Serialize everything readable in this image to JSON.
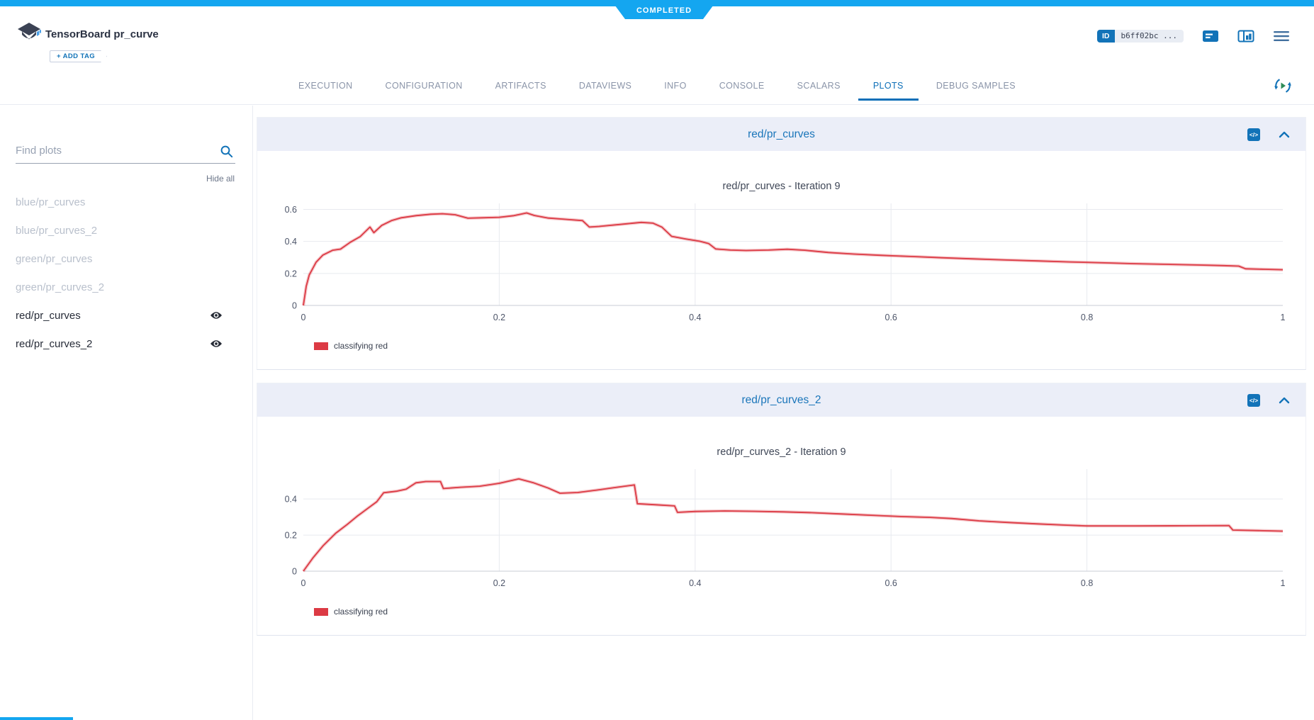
{
  "status": {
    "label": "COMPLETED"
  },
  "colors": {
    "accent_blue": "#14a6f0",
    "link_blue": "#1273b8",
    "red_series": "#dc3a44",
    "panel_header_bg": "#ebeef8"
  },
  "header": {
    "title": "TensorBoard pr_curve",
    "add_tag_label": "+ ADD TAG",
    "id_label": "ID",
    "id_value": "b6ff02bc ..."
  },
  "tabs": {
    "items": [
      "EXECUTION",
      "CONFIGURATION",
      "ARTIFACTS",
      "DATAVIEWS",
      "INFO",
      "CONSOLE",
      "SCALARS",
      "PLOTS",
      "DEBUG SAMPLES"
    ],
    "active": "PLOTS"
  },
  "sidebar": {
    "search_placeholder": "Find plots",
    "hide_all_label": "Hide all",
    "items": [
      {
        "label": "blue/pr_curves",
        "visible": false
      },
      {
        "label": "blue/pr_curves_2",
        "visible": false
      },
      {
        "label": "green/pr_curves",
        "visible": false
      },
      {
        "label": "green/pr_curves_2",
        "visible": false
      },
      {
        "label": "red/pr_curves",
        "visible": true
      },
      {
        "label": "red/pr_curves_2",
        "visible": true
      }
    ]
  },
  "panels": [
    {
      "title": "red/pr_curves"
    },
    {
      "title": "red/pr_curves_2"
    }
  ],
  "chart_data": [
    {
      "type": "line",
      "title": "red/pr_curves - Iteration 9",
      "xlabel": "",
      "ylabel": "",
      "xlim": [
        0,
        1
      ],
      "ylim": [
        0,
        0.62
      ],
      "xticks": [
        0,
        0.2,
        0.4,
        0.6,
        0.8,
        1
      ],
      "xtick_labels": [
        "0",
        "0.2",
        "0.4",
        "0.6",
        "0.8",
        "1"
      ],
      "yticks": [
        0,
        0.2,
        0.4,
        0.6
      ],
      "ytick_labels": [
        "0",
        "0.2",
        "0.4",
        "0.6"
      ],
      "grid": true,
      "legend_position": "bottom-left",
      "series": [
        {
          "name": "classifying red",
          "color": "#dc3a44",
          "points": [
            [
              0,
              0
            ],
            [
              0.003,
              0.12
            ],
            [
              0.006,
              0.19
            ],
            [
              0.013,
              0.27
            ],
            [
              0.02,
              0.315
            ],
            [
              0.03,
              0.345
            ],
            [
              0.038,
              0.352
            ],
            [
              0.048,
              0.395
            ],
            [
              0.058,
              0.43
            ],
            [
              0.068,
              0.49
            ],
            [
              0.072,
              0.455
            ],
            [
              0.08,
              0.5
            ],
            [
              0.09,
              0.53
            ],
            [
              0.1,
              0.548
            ],
            [
              0.115,
              0.561
            ],
            [
              0.13,
              0.57
            ],
            [
              0.142,
              0.573
            ],
            [
              0.155,
              0.567
            ],
            [
              0.168,
              0.545
            ],
            [
              0.183,
              0.548
            ],
            [
              0.2,
              0.551
            ],
            [
              0.215,
              0.561
            ],
            [
              0.228,
              0.578
            ],
            [
              0.236,
              0.562
            ],
            [
              0.25,
              0.546
            ],
            [
              0.268,
              0.538
            ],
            [
              0.285,
              0.53
            ],
            [
              0.292,
              0.49
            ],
            [
              0.302,
              0.494
            ],
            [
              0.33,
              0.51
            ],
            [
              0.345,
              0.519
            ],
            [
              0.357,
              0.514
            ],
            [
              0.366,
              0.49
            ],
            [
              0.376,
              0.432
            ],
            [
              0.39,
              0.416
            ],
            [
              0.405,
              0.401
            ],
            [
              0.414,
              0.386
            ],
            [
              0.421,
              0.353
            ],
            [
              0.436,
              0.346
            ],
            [
              0.452,
              0.343
            ],
            [
              0.475,
              0.346
            ],
            [
              0.494,
              0.351
            ],
            [
              0.512,
              0.345
            ],
            [
              0.536,
              0.331
            ],
            [
              0.562,
              0.321
            ],
            [
              0.59,
              0.313
            ],
            [
              0.62,
              0.306
            ],
            [
              0.652,
              0.298
            ],
            [
              0.684,
              0.291
            ],
            [
              0.718,
              0.284
            ],
            [
              0.75,
              0.278
            ],
            [
              0.782,
              0.272
            ],
            [
              0.818,
              0.266
            ],
            [
              0.85,
              0.261
            ],
            [
              0.882,
              0.257
            ],
            [
              0.912,
              0.253
            ],
            [
              0.94,
              0.249
            ],
            [
              0.955,
              0.246
            ],
            [
              0.962,
              0.229
            ],
            [
              0.982,
              0.226
            ],
            [
              1,
              0.223
            ]
          ]
        }
      ]
    },
    {
      "type": "line",
      "title": "red/pr_curves_2 - Iteration 9",
      "xlabel": "",
      "ylabel": "",
      "xlim": [
        0,
        1
      ],
      "ylim": [
        0,
        0.55
      ],
      "xticks": [
        0,
        0.2,
        0.4,
        0.6,
        0.8,
        1
      ],
      "xtick_labels": [
        "0",
        "0.2",
        "0.4",
        "0.6",
        "0.8",
        "1"
      ],
      "yticks": [
        0,
        0.2,
        0.4
      ],
      "ytick_labels": [
        "0",
        "0.2",
        "0.4"
      ],
      "grid": true,
      "legend_position": "bottom-left",
      "series": [
        {
          "name": "classifying red",
          "color": "#dc3a44",
          "points": [
            [
              0,
              0
            ],
            [
              0.01,
              0.075
            ],
            [
              0.02,
              0.14
            ],
            [
              0.033,
              0.21
            ],
            [
              0.045,
              0.26
            ],
            [
              0.055,
              0.305
            ],
            [
              0.065,
              0.345
            ],
            [
              0.075,
              0.385
            ],
            [
              0.082,
              0.435
            ],
            [
              0.095,
              0.443
            ],
            [
              0.105,
              0.455
            ],
            [
              0.115,
              0.49
            ],
            [
              0.125,
              0.497
            ],
            [
              0.14,
              0.497
            ],
            [
              0.143,
              0.458
            ],
            [
              0.16,
              0.465
            ],
            [
              0.18,
              0.471
            ],
            [
              0.2,
              0.487
            ],
            [
              0.22,
              0.512
            ],
            [
              0.235,
              0.49
            ],
            [
              0.25,
              0.461
            ],
            [
              0.262,
              0.432
            ],
            [
              0.28,
              0.436
            ],
            [
              0.3,
              0.45
            ],
            [
              0.32,
              0.465
            ],
            [
              0.338,
              0.478
            ],
            [
              0.341,
              0.374
            ],
            [
              0.36,
              0.368
            ],
            [
              0.379,
              0.362
            ],
            [
              0.382,
              0.326
            ],
            [
              0.4,
              0.331
            ],
            [
              0.43,
              0.334
            ],
            [
              0.46,
              0.332
            ],
            [
              0.49,
              0.329
            ],
            [
              0.52,
              0.324
            ],
            [
              0.55,
              0.317
            ],
            [
              0.58,
              0.31
            ],
            [
              0.61,
              0.303
            ],
            [
              0.64,
              0.298
            ],
            [
              0.662,
              0.292
            ],
            [
              0.69,
              0.279
            ],
            [
              0.72,
              0.27
            ],
            [
              0.75,
              0.262
            ],
            [
              0.78,
              0.255
            ],
            [
              0.8,
              0.251
            ],
            [
              0.85,
              0.251
            ],
            [
              0.9,
              0.252
            ],
            [
              0.945,
              0.253
            ],
            [
              0.949,
              0.228
            ],
            [
              0.975,
              0.225
            ],
            [
              1,
              0.222
            ]
          ]
        }
      ]
    }
  ]
}
